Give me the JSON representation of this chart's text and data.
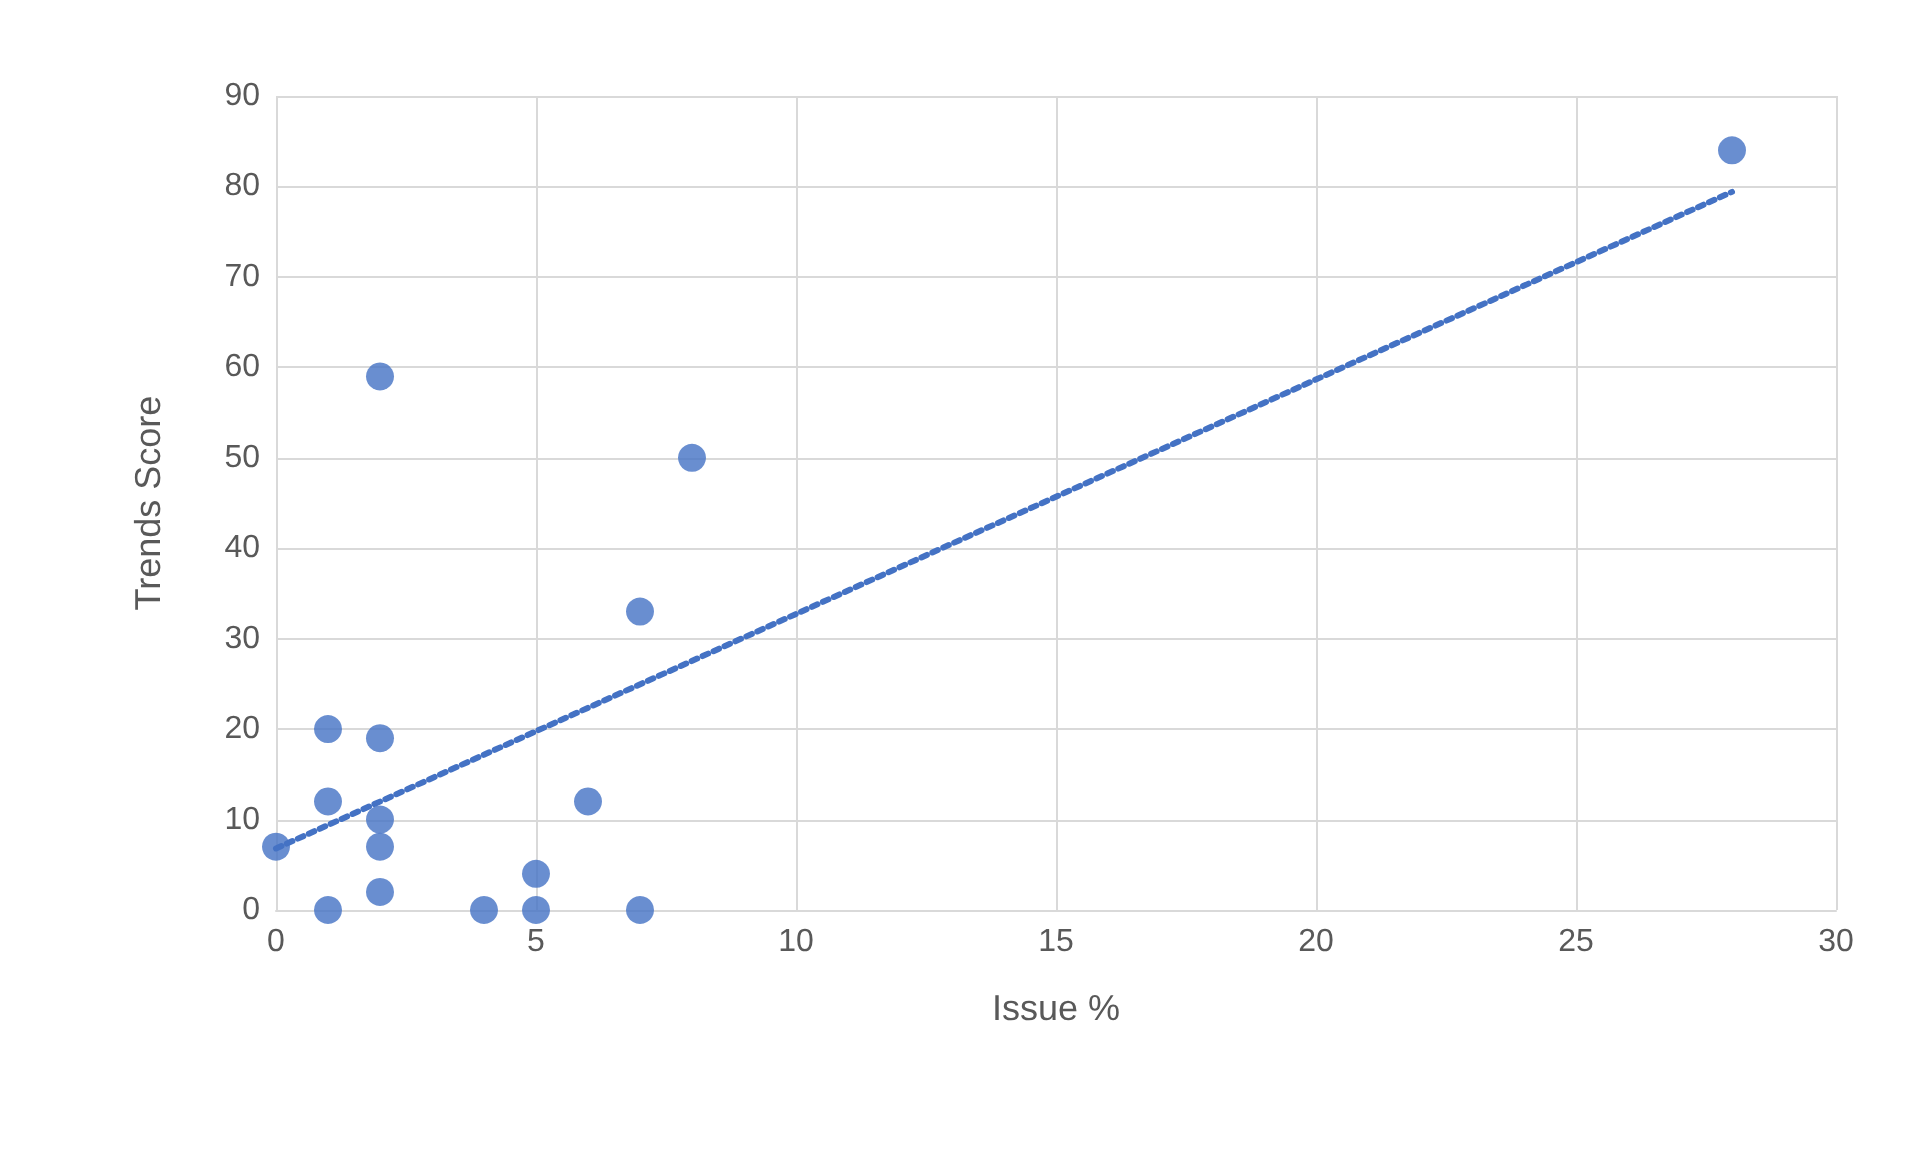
{
  "chart_data": {
    "type": "scatter",
    "xlabel": "Issue %",
    "ylabel": "Trends Score",
    "xlim": [
      0,
      30
    ],
    "xticks": [
      0,
      5,
      10,
      15,
      20,
      25,
      30
    ],
    "ylim": [
      0,
      90
    ],
    "yticks": [
      0,
      10,
      20,
      30,
      40,
      50,
      60,
      70,
      80,
      90
    ],
    "grid": true,
    "series": [
      {
        "color": "#4472c4",
        "marker": "circle",
        "x": [
          0,
          1,
          1,
          1,
          2,
          2,
          2,
          2,
          2,
          4,
          5,
          5,
          6,
          7,
          7,
          8,
          28
        ],
        "values": [
          7,
          0,
          12,
          20,
          59,
          19,
          10,
          7,
          2,
          0,
          4,
          0,
          12,
          33,
          0,
          50,
          84
        ]
      },
      {
        "type": "line",
        "color": "#4472c4",
        "marker": "none",
        "line_style": "dotted",
        "x": [
          0,
          28
        ],
        "values": [
          6.8,
          79.4
        ]
      }
    ]
  }
}
